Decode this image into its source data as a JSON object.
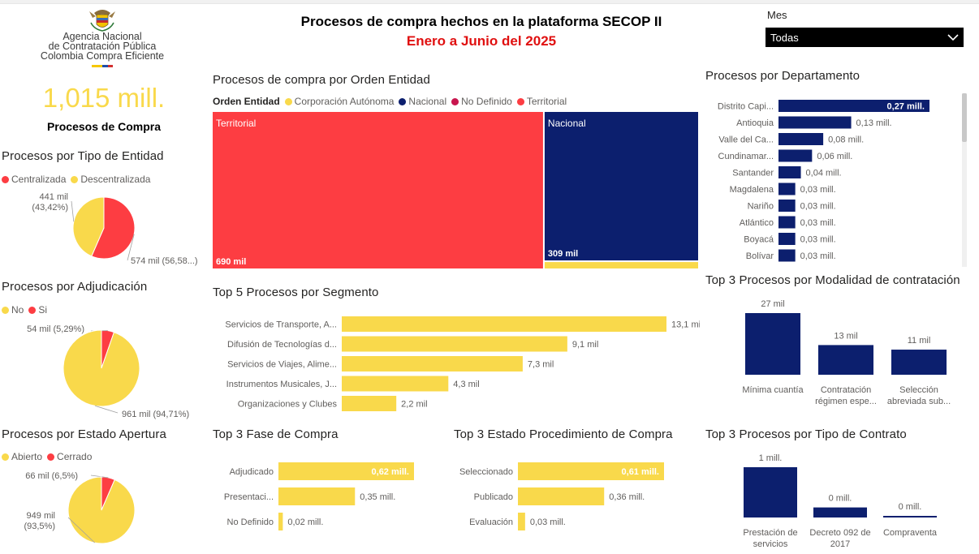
{
  "header": {
    "title": "Procesos de compra hechos en la plataforma SECOP II",
    "subtitle": "Enero a Junio del 2025"
  },
  "logo": {
    "line1": "Agencia Nacional",
    "line2": "de Contratación Pública",
    "line3": "Colombia Compra Eficiente"
  },
  "filter": {
    "label": "Mes",
    "value": "Todas"
  },
  "kpi": {
    "value": "1,015 mill.",
    "label": "Procesos de Compra"
  },
  "colors": {
    "red": "#fd3d42",
    "yellow": "#f9d94b",
    "navy": "#0c1f6e",
    "crimson": "#c8164e"
  },
  "chart_data": [
    {
      "id": "tipo-entidad",
      "type": "pie",
      "title": "Procesos por Tipo de Entidad",
      "categories": [
        "Centralizada",
        "Descentralizada"
      ],
      "values": [
        574,
        441
      ],
      "percent": [
        56.58,
        43.42
      ],
      "labels": [
        "574 mil (56,58...)",
        "441 mil (43,42%)"
      ]
    },
    {
      "id": "adjudicacion",
      "type": "pie",
      "title": "Procesos por Adjudicación",
      "categories": [
        "No",
        "Si"
      ],
      "values": [
        961,
        54
      ],
      "percent": [
        94.71,
        5.29
      ],
      "labels": [
        "961 mil (94,71%)",
        "54 mil (5,29%)"
      ]
    },
    {
      "id": "estado-apertura",
      "type": "pie",
      "title": "Procesos por Estado Apertura",
      "categories": [
        "Abierto",
        "Cerrado"
      ],
      "values": [
        949,
        66
      ],
      "percent": [
        93.5,
        6.5
      ],
      "labels": [
        "949 mil (93,5%)",
        "66 mil (6,5%)"
      ]
    },
    {
      "id": "orden-entidad",
      "type": "treemap",
      "title": "Procesos de compra por Orden Entidad",
      "legend_title": "Orden Entidad",
      "legend": [
        "Corporación Autónoma",
        "Nacional",
        "No Definido",
        "Territorial"
      ],
      "categories": [
        "Territorial",
        "Nacional",
        "Corporación Autónoma"
      ],
      "values": [
        690,
        309,
        15
      ],
      "labels": [
        "690 mil",
        "309 mil",
        ""
      ]
    },
    {
      "id": "segmento",
      "type": "bar",
      "orientation": "horizontal",
      "title": "Top 5 Procesos por Segmento",
      "categories": [
        "Servicios de Transporte, A...",
        "Difusión de Tecnologías d...",
        "Servicios de Viajes, Alime...",
        "Instrumentos Musicales, J...",
        "Organizaciones y Clubes"
      ],
      "values": [
        13.1,
        9.1,
        7.3,
        4.3,
        2.2
      ],
      "labels": [
        "13,1 mil",
        "9,1 mil",
        "7,3 mil",
        "4,3 mil",
        "2,2 mil"
      ]
    },
    {
      "id": "fase",
      "type": "bar",
      "orientation": "horizontal",
      "title": "Top 3 Fase de Compra",
      "categories": [
        "Adjudicado",
        "Presentaci...",
        "No Definido"
      ],
      "values": [
        0.62,
        0.35,
        0.02
      ],
      "labels": [
        "0,62 mill.",
        "0,35 mill.",
        "0,02 mill."
      ]
    },
    {
      "id": "estado-proc",
      "type": "bar",
      "orientation": "horizontal",
      "title": "Top 3 Estado Procedimiento de Compra",
      "categories": [
        "Seleccionado",
        "Publicado",
        "Evaluación"
      ],
      "values": [
        0.61,
        0.36,
        0.03
      ],
      "labels": [
        "0,61 mill.",
        "0,36 mill.",
        "0,03 mill."
      ]
    },
    {
      "id": "departamento",
      "type": "bar",
      "orientation": "horizontal",
      "title": "Procesos por Departamento",
      "categories": [
        "Distrito Capi...",
        "Antioquia",
        "Valle del Ca...",
        "Cundinamar...",
        "Santander",
        "Magdalena",
        "Nariño",
        "Atlántico",
        "Boyacá",
        "Bolívar"
      ],
      "values": [
        0.27,
        0.13,
        0.08,
        0.06,
        0.04,
        0.03,
        0.03,
        0.03,
        0.03,
        0.03
      ],
      "labels": [
        "0,27 mill.",
        "0,13 mill.",
        "0,08 mill.",
        "0,06 mill.",
        "0,04 mill.",
        "0,03 mill.",
        "0,03 mill.",
        "0,03 mill.",
        "0,03 mill.",
        "0,03 mill."
      ]
    },
    {
      "id": "modalidad",
      "type": "bar",
      "orientation": "vertical",
      "title": "Top 3 Procesos por Modalidad de contratación",
      "categories": [
        [
          "Mínima cuantía"
        ],
        [
          "Contratación",
          "régimen espe..."
        ],
        [
          "Selección",
          "abreviada sub..."
        ]
      ],
      "values": [
        27,
        13,
        11
      ],
      "labels": [
        "27 mil",
        "13 mil",
        "11 mil"
      ]
    },
    {
      "id": "tipo-contrato",
      "type": "bar",
      "orientation": "vertical",
      "title": "Top 3 Procesos por Tipo de Contrato",
      "categories": [
        [
          "Prestación de",
          "servicios"
        ],
        [
          "Decreto 092 de",
          "2017"
        ],
        [
          "Compraventa"
        ]
      ],
      "values": [
        1,
        0.2,
        0.03
      ],
      "labels": [
        "1 mill.",
        "0 mill.",
        "0 mill."
      ]
    }
  ]
}
